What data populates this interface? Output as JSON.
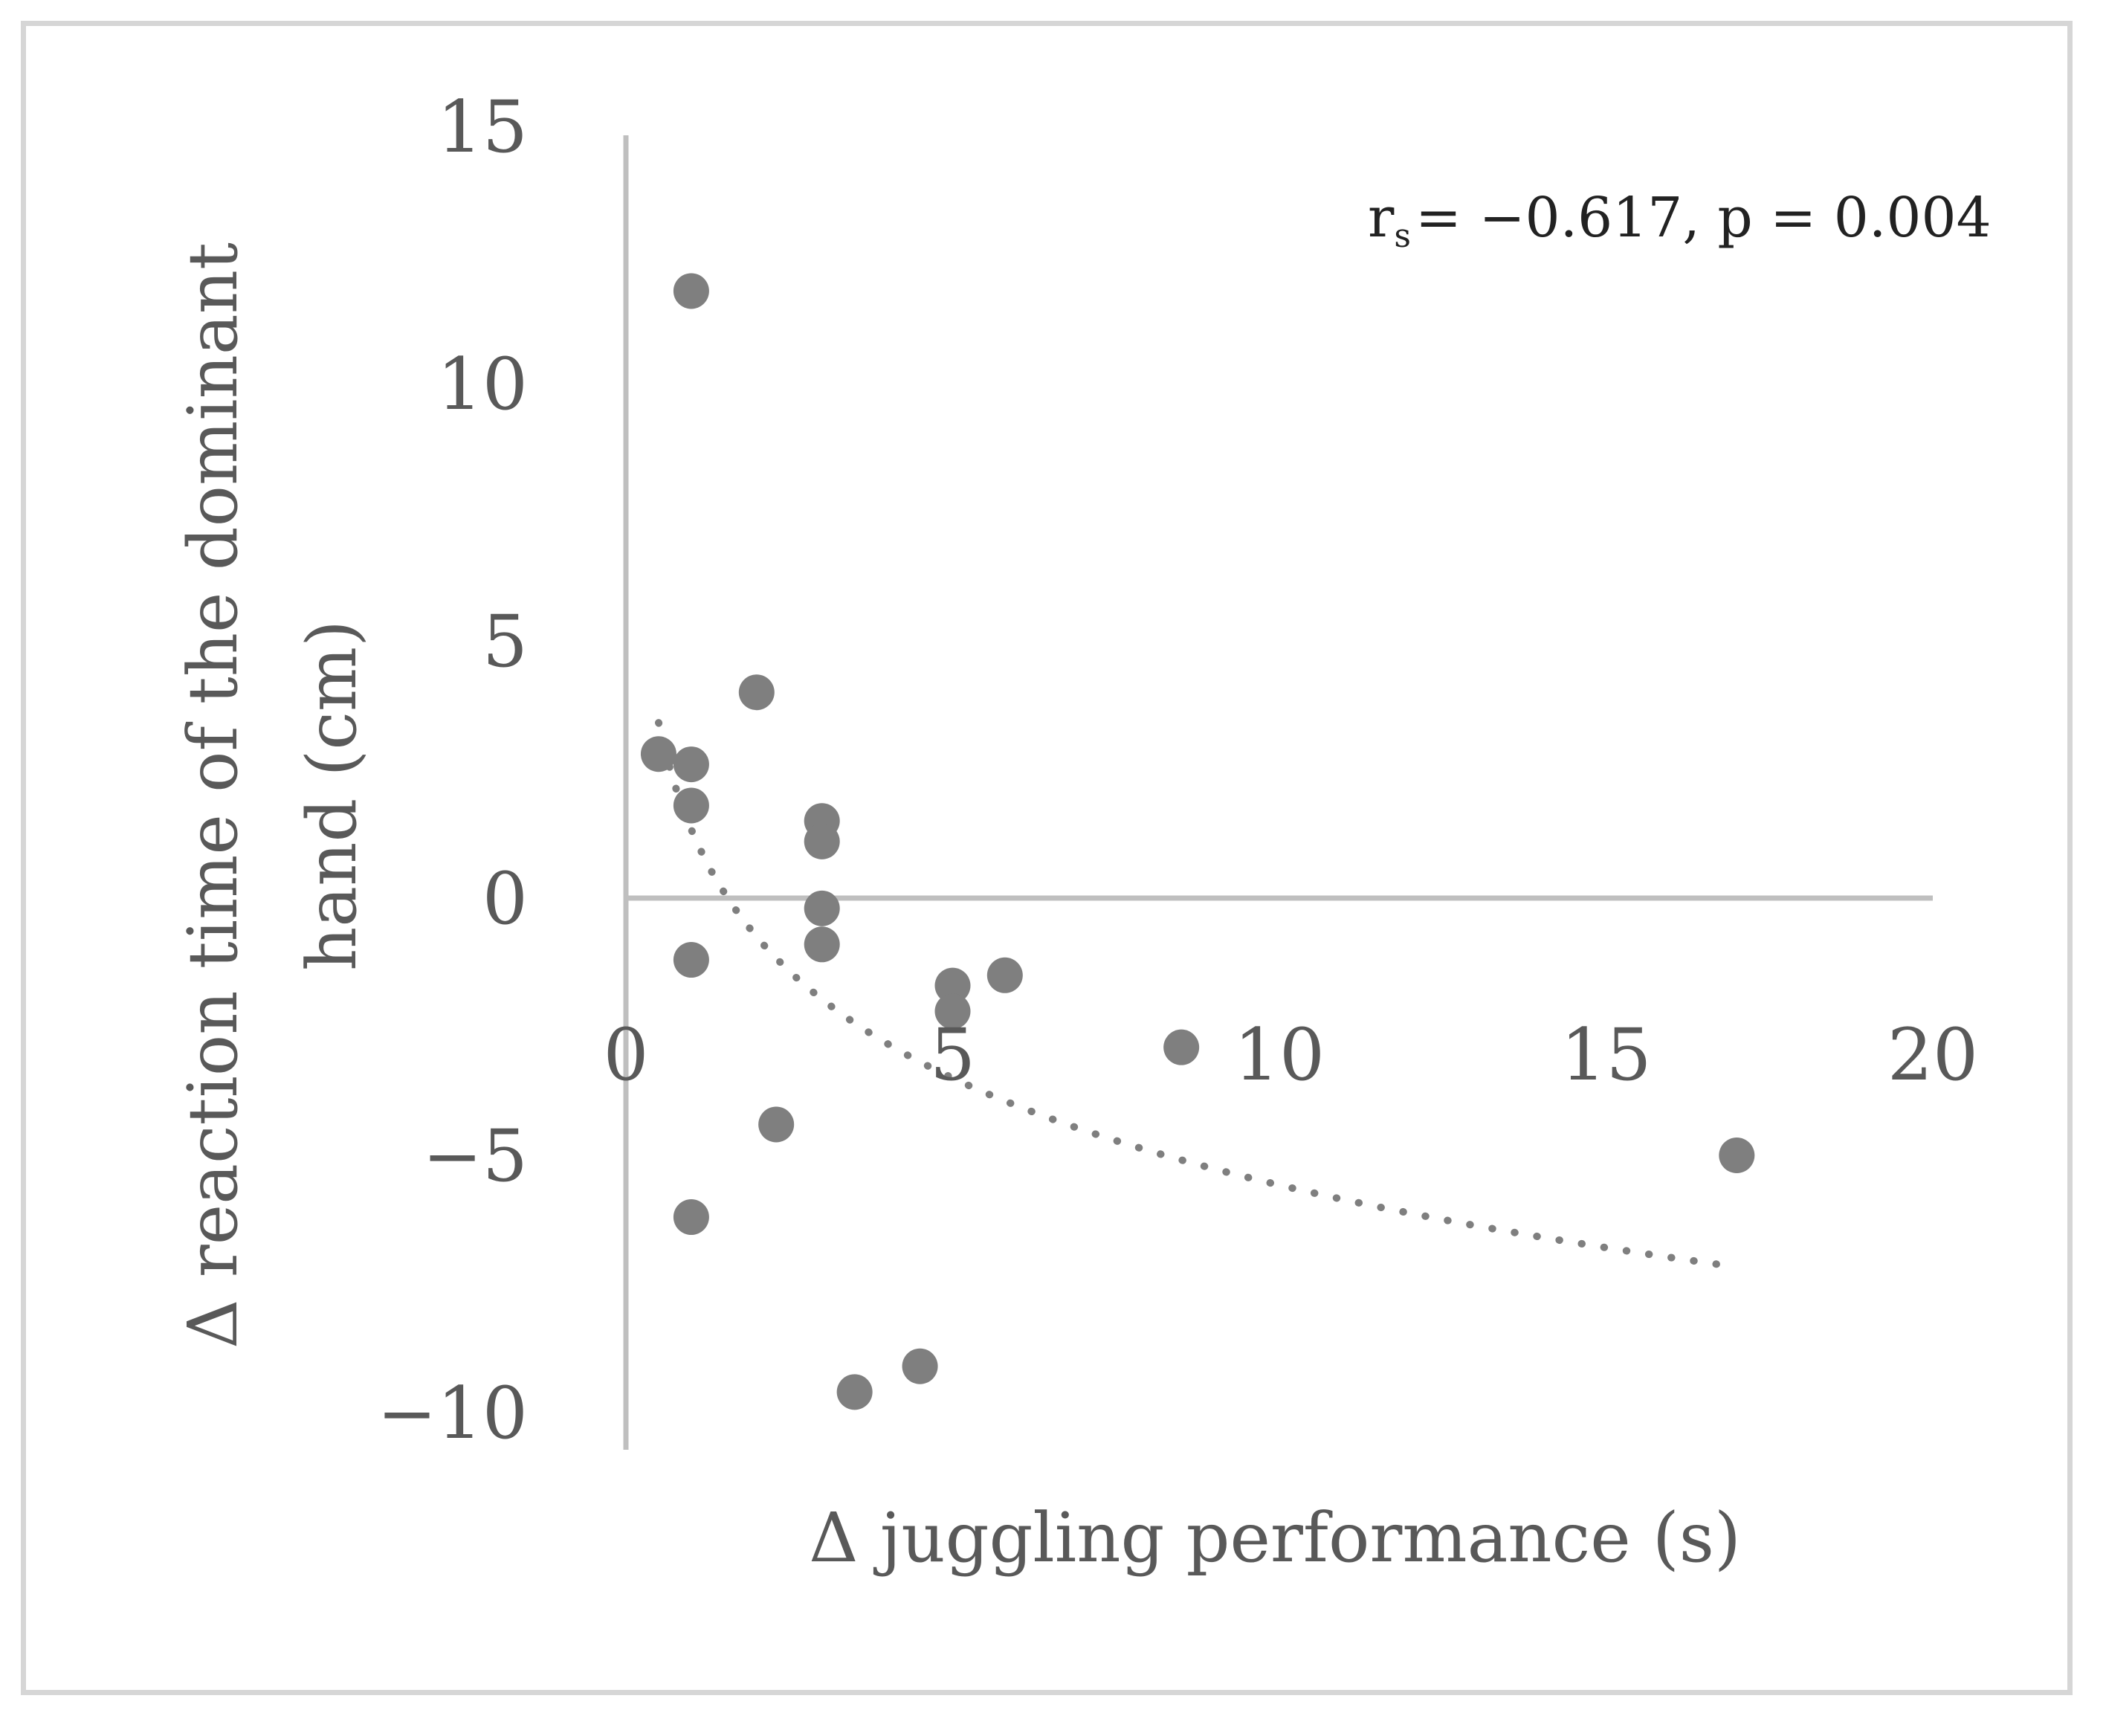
{
  "chart_data": {
    "type": "scatter",
    "title": "",
    "xlabel": "Δ juggling performance (s)",
    "ylabel_lines": [
      "Δ reaction time of the dominant",
      "hand (cm)"
    ],
    "annotation": {
      "r_symbol": "r",
      "r_subscript": "s",
      "text": "= −0.617, p = 0.004"
    },
    "xlim": [
      0,
      20
    ],
    "ylim": [
      -10,
      15
    ],
    "x_ticks": [
      0,
      5,
      10,
      15,
      20
    ],
    "x_tick_labels": [
      "0",
      "5",
      "10",
      "15",
      "20"
    ],
    "y_ticks": [
      15,
      10,
      5,
      0,
      -5,
      -10
    ],
    "y_tick_labels": [
      "15",
      "10",
      "5",
      "0",
      "−5",
      "−10"
    ],
    "grid": false,
    "points": [
      {
        "x": 1.0,
        "y": 11.8
      },
      {
        "x": 2.0,
        "y": 4.0
      },
      {
        "x": 0.5,
        "y": 2.8
      },
      {
        "x": 1.0,
        "y": 2.6
      },
      {
        "x": 1.0,
        "y": 1.8
      },
      {
        "x": 3.0,
        "y": 1.5
      },
      {
        "x": 3.0,
        "y": 1.1
      },
      {
        "x": 3.0,
        "y": -0.2
      },
      {
        "x": 3.0,
        "y": -0.9
      },
      {
        "x": 1.0,
        "y": -1.2
      },
      {
        "x": 5.0,
        "y": -1.7
      },
      {
        "x": 5.0,
        "y": -2.2
      },
      {
        "x": 5.8,
        "y": -1.5
      },
      {
        "x": 8.5,
        "y": -2.9
      },
      {
        "x": 2.3,
        "y": -4.4
      },
      {
        "x": 1.0,
        "y": -6.2
      },
      {
        "x": 3.5,
        "y": -9.6
      },
      {
        "x": 4.5,
        "y": -9.1
      },
      {
        "x": 17.0,
        "y": -5.0
      }
    ],
    "trendline": {
      "type": "logarithmic",
      "style": "dotted",
      "x_range": [
        0.5,
        16.7
      ],
      "a": -3.0,
      "b": 1.33
    },
    "colors": {
      "points": "#7f7f7f",
      "axes": "#bfbfbf",
      "trendline": "#7f7f7f",
      "text": "#595959"
    }
  }
}
